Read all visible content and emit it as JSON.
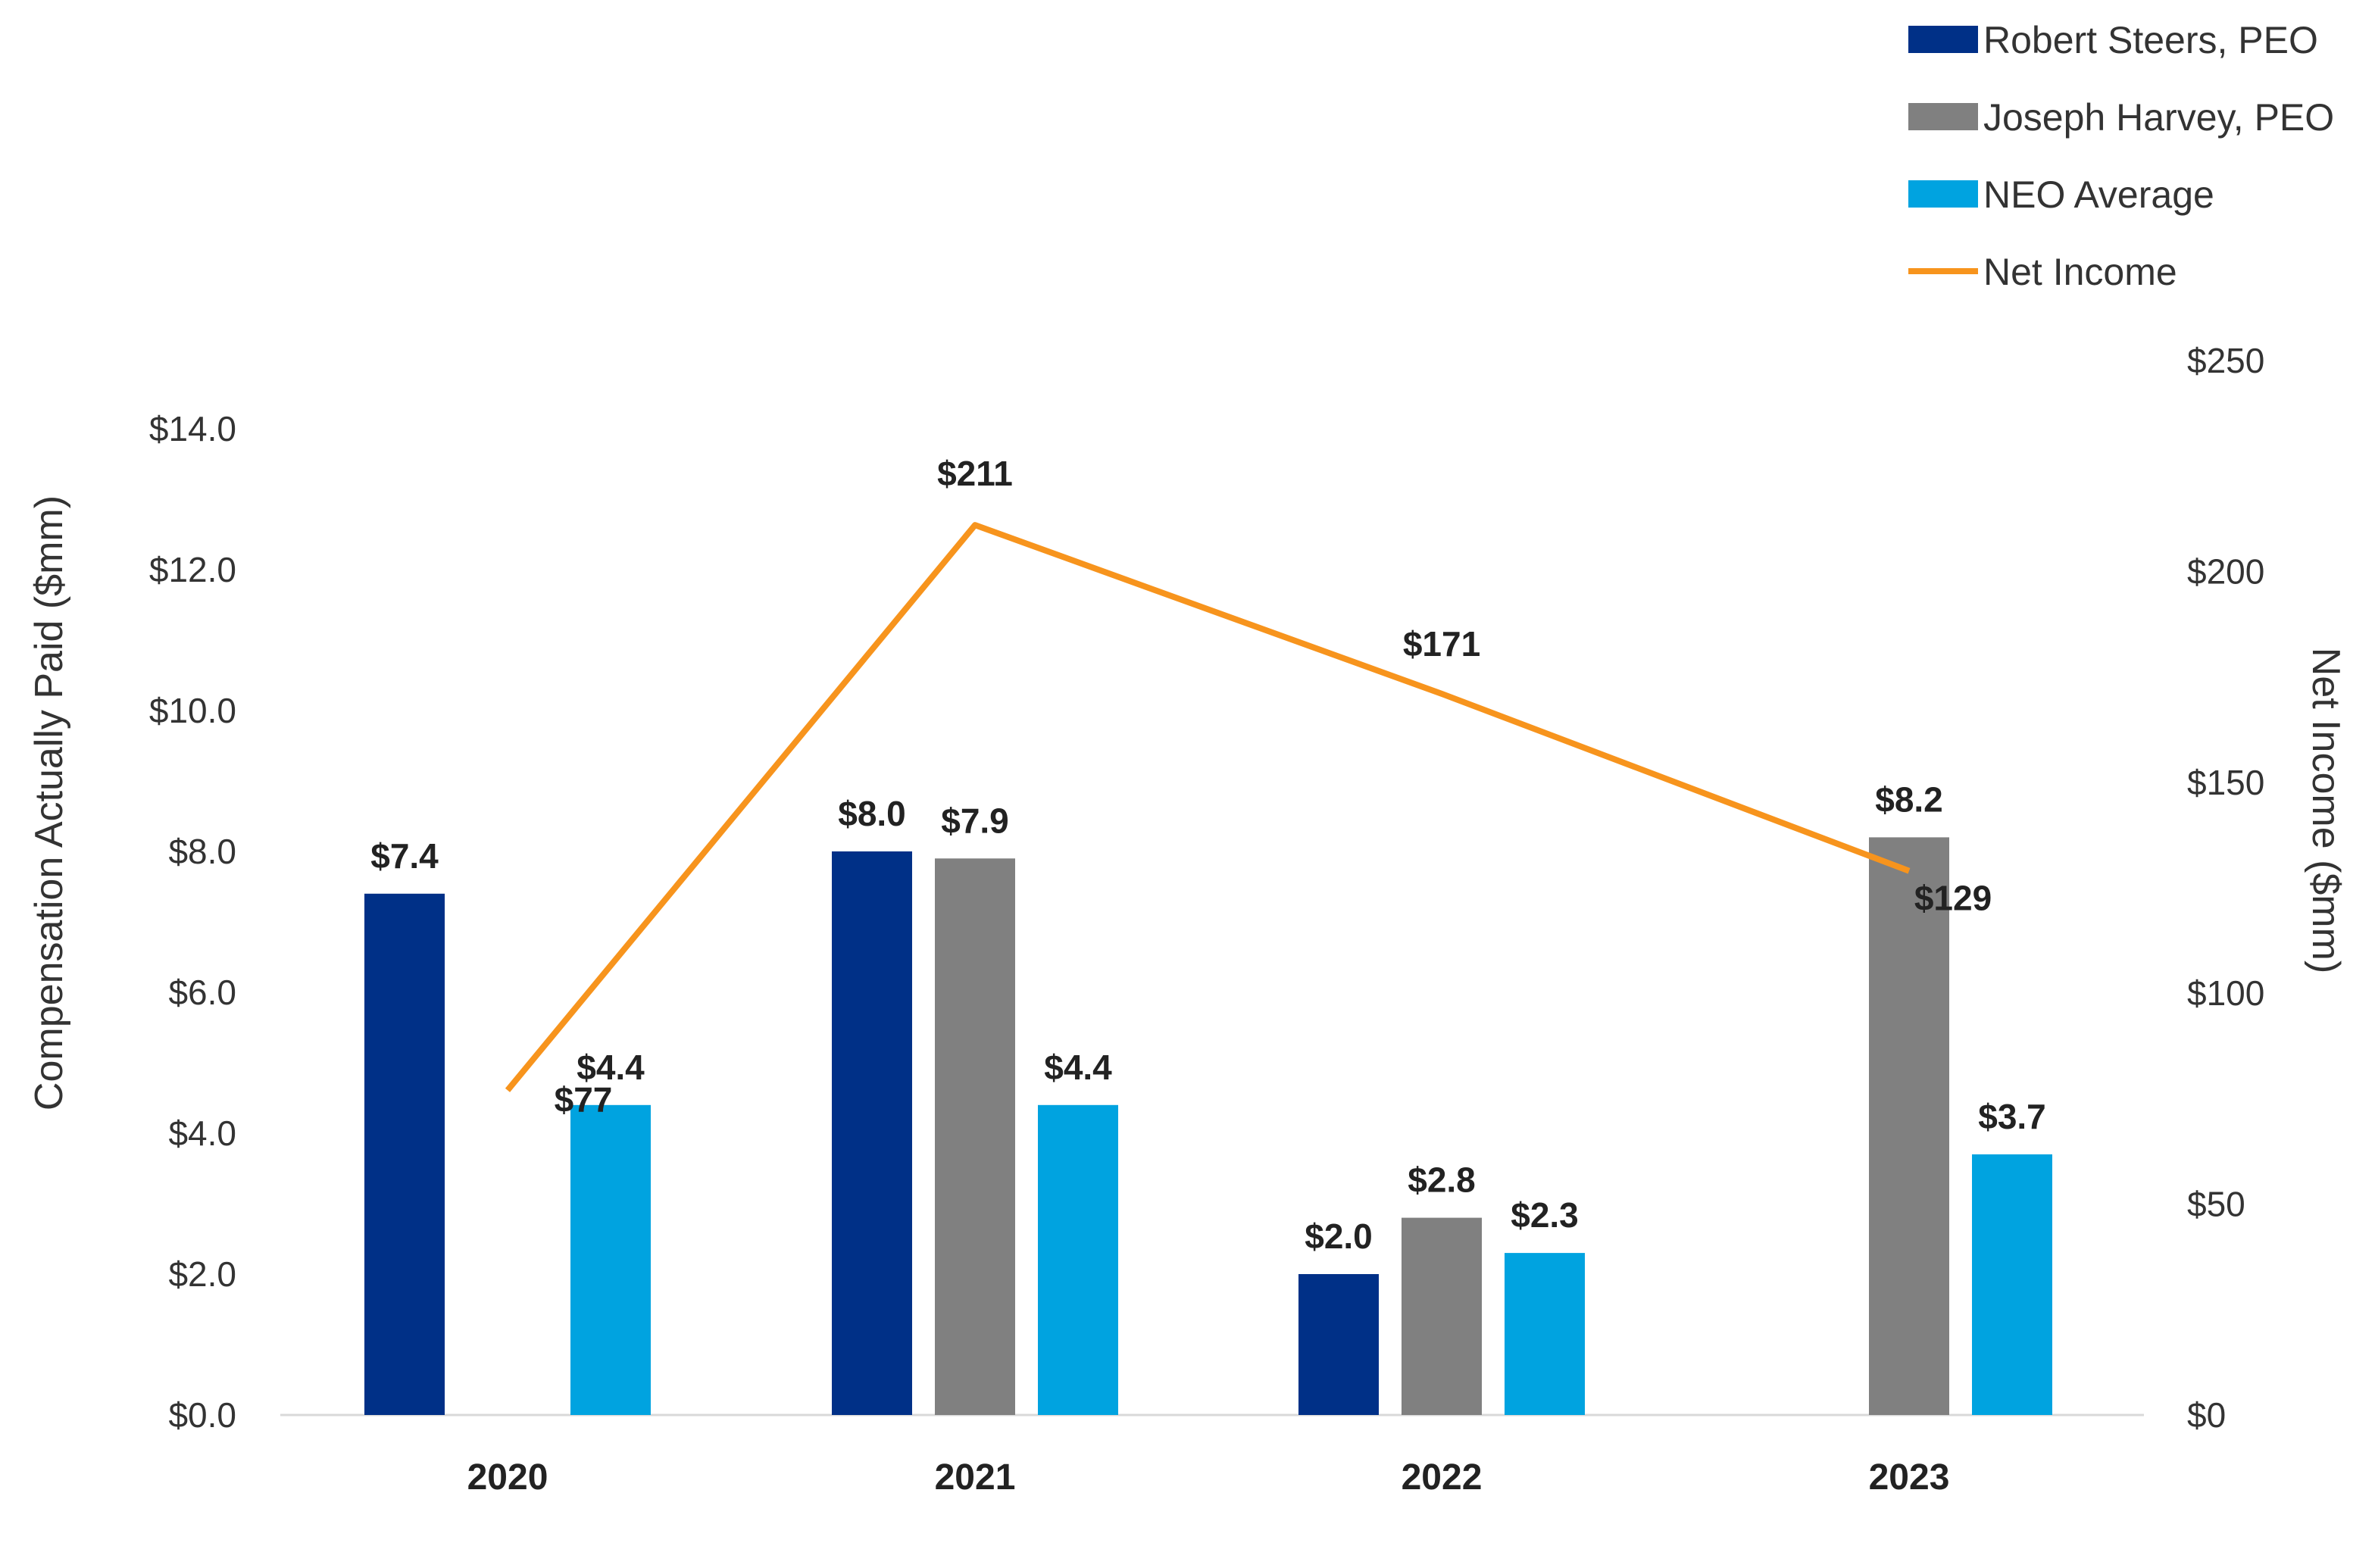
{
  "chart_data": {
    "type": "bar",
    "categories": [
      "2020",
      "2021",
      "2022",
      "2023"
    ],
    "ylabel": "Compensation Actually Paid ($mm)",
    "ylabel_right": "Net Income ($mm)",
    "ylim": [
      0,
      14
    ],
    "ylim_right": [
      0,
      250
    ],
    "yticks": [
      "$0.0",
      "$2.0",
      "$4.0",
      "$6.0",
      "$8.0",
      "$10.0",
      "$12.0",
      "$14.0"
    ],
    "yticks_right": [
      "$0",
      "$50",
      "$100",
      "$150",
      "$200",
      "$250"
    ],
    "grid": false,
    "legend": "top-right",
    "series": [
      {
        "name": "Robert Steers, PEO",
        "type": "bar",
        "color": "#003087",
        "values": [
          7.4,
          8.0,
          2.0,
          null
        ],
        "labels": [
          "$7.4",
          "$8.0",
          "$2.0",
          ""
        ]
      },
      {
        "name": "Joseph Harvey, PEO",
        "type": "bar",
        "color": "#808080",
        "values": [
          null,
          7.9,
          2.8,
          8.2
        ],
        "labels": [
          "",
          "$7.9",
          "$2.8",
          "$8.2"
        ]
      },
      {
        "name": "NEO Average",
        "type": "bar",
        "color": "#00A3E0",
        "values": [
          4.4,
          4.4,
          2.3,
          3.7
        ],
        "labels": [
          "$4.4",
          "$4.4",
          "$2.3",
          "$3.7"
        ]
      },
      {
        "name": "Net Income",
        "type": "line",
        "axis": "right",
        "color": "#F7941D",
        "values": [
          77,
          211,
          171,
          129
        ],
        "labels": [
          "$77",
          "$211",
          "$171",
          "$129"
        ]
      }
    ]
  }
}
